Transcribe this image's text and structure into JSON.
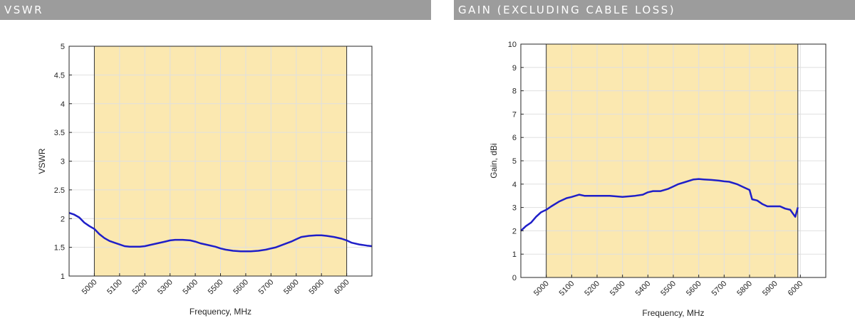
{
  "panels": {
    "left": {
      "header": "VSWR"
    },
    "right": {
      "header": "GAIN (EXCLUDING CABLE LOSS)"
    }
  },
  "colors": {
    "header_bg": "#9c9c9c",
    "band_fill": "#fbe8b0",
    "series_line": "#1f1fc8",
    "grid": "#e0e0e0",
    "axes": "#262626"
  },
  "chart_data": [
    {
      "type": "line",
      "title": "VSWR",
      "xlabel": "Frequency, MHz",
      "ylabel": "VSWR",
      "xlim": [
        4900,
        6100
      ],
      "ylim": [
        1,
        5
      ],
      "xticks": [
        5000,
        5100,
        5200,
        5300,
        5400,
        5500,
        5600,
        5700,
        5800,
        5900,
        6000
      ],
      "yticks": [
        1,
        1.5,
        2,
        2.5,
        3,
        3.5,
        4,
        4.5,
        5
      ],
      "ytick_labels": [
        "1",
        "1.5",
        "2",
        "2.5",
        "3",
        "3.5",
        "4",
        "4.5",
        "5"
      ],
      "highlight_band": [
        5000,
        6000
      ],
      "grid": true,
      "series": [
        {
          "x": [
            4900,
            4920,
            4940,
            4960,
            4980,
            5000,
            5020,
            5040,
            5060,
            5080,
            5100,
            5120,
            5140,
            5160,
            5180,
            5200,
            5220,
            5250,
            5280,
            5300,
            5320,
            5350,
            5380,
            5400,
            5420,
            5450,
            5480,
            5500,
            5520,
            5550,
            5580,
            5600,
            5620,
            5650,
            5680,
            5700,
            5720,
            5750,
            5780,
            5800,
            5820,
            5850,
            5880,
            5900,
            5920,
            5950,
            5980,
            6000,
            6020,
            6050,
            6080,
            6100
          ],
          "y": [
            2.1,
            2.07,
            2.02,
            1.93,
            1.87,
            1.82,
            1.73,
            1.66,
            1.61,
            1.58,
            1.55,
            1.52,
            1.51,
            1.51,
            1.51,
            1.52,
            1.54,
            1.57,
            1.6,
            1.62,
            1.63,
            1.63,
            1.62,
            1.6,
            1.57,
            1.54,
            1.51,
            1.48,
            1.46,
            1.44,
            1.43,
            1.43,
            1.43,
            1.44,
            1.46,
            1.48,
            1.5,
            1.55,
            1.6,
            1.64,
            1.68,
            1.7,
            1.71,
            1.71,
            1.7,
            1.68,
            1.65,
            1.62,
            1.58,
            1.55,
            1.53,
            1.52
          ]
        }
      ]
    },
    {
      "type": "line",
      "title": "GAIN (EXCLUDING CABLE LOSS)",
      "xlabel": "Frequency, MHz",
      "ylabel": "Gain, dBi",
      "xlim": [
        4900,
        6100
      ],
      "ylim": [
        0,
        10
      ],
      "xticks": [
        5000,
        5100,
        5200,
        5300,
        5400,
        5500,
        5600,
        5700,
        5800,
        5900,
        6000
      ],
      "yticks": [
        0,
        1,
        2,
        3,
        4,
        5,
        6,
        7,
        8,
        9,
        10
      ],
      "ytick_labels": [
        "0",
        "1",
        "2",
        "3",
        "4",
        "5",
        "6",
        "7",
        "8",
        "9",
        "10"
      ],
      "highlight_band": [
        5000,
        5990
      ],
      "grid": true,
      "series": [
        {
          "x": [
            4900,
            4920,
            4940,
            4960,
            4980,
            5000,
            5020,
            5050,
            5080,
            5100,
            5130,
            5150,
            5180,
            5200,
            5250,
            5300,
            5350,
            5380,
            5400,
            5420,
            5450,
            5480,
            5500,
            5520,
            5550,
            5580,
            5600,
            5620,
            5650,
            5680,
            5700,
            5720,
            5750,
            5780,
            5800,
            5810,
            5830,
            5850,
            5870,
            5890,
            5900,
            5920,
            5940,
            5960,
            5970,
            5980,
            5990
          ],
          "y": [
            2.0,
            2.2,
            2.35,
            2.6,
            2.8,
            2.9,
            3.05,
            3.25,
            3.4,
            3.45,
            3.55,
            3.5,
            3.5,
            3.5,
            3.5,
            3.45,
            3.5,
            3.55,
            3.65,
            3.7,
            3.7,
            3.8,
            3.9,
            4.0,
            4.1,
            4.2,
            4.22,
            4.2,
            4.18,
            4.15,
            4.12,
            4.1,
            4.0,
            3.85,
            3.75,
            3.35,
            3.3,
            3.15,
            3.05,
            3.05,
            3.05,
            3.05,
            2.95,
            2.9,
            2.75,
            2.6,
            3.0
          ]
        }
      ]
    }
  ]
}
